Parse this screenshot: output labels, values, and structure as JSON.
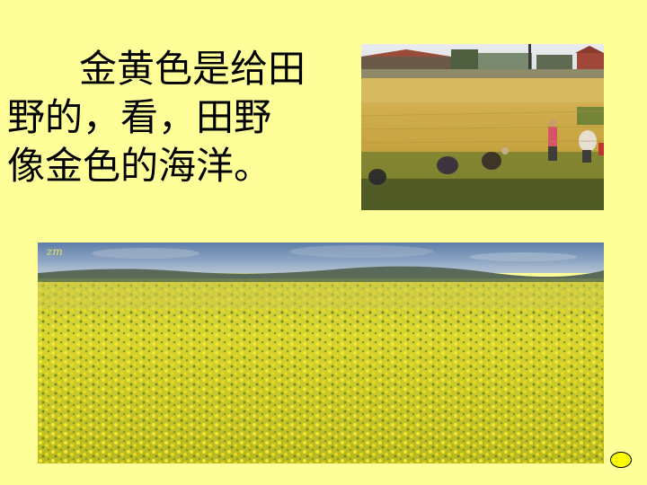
{
  "slide": {
    "background_color": "#FFFF99",
    "poem": {
      "lines": [
        "金黄色是给田",
        "野的，看，田野",
        "像金色的海洋。"
      ],
      "text_color": "#000000"
    },
    "photos": {
      "harvest": {
        "description_icon": "rice-harvest-photo"
      },
      "rapeseed_field": {
        "description_icon": "rapeseed-field-photo",
        "watermark": "zm"
      }
    },
    "nav_button": {
      "color": "#FFFF00",
      "icon": "oval-next-button"
    }
  }
}
